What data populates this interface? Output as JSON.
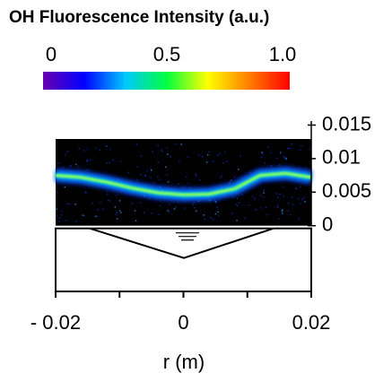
{
  "chart_data": {
    "type": "flame-image",
    "title": "OH  Fluorescence Intensity (a.u.)",
    "colorbar": {
      "ticks": [
        0,
        0.5,
        {
          "value": 1,
          "label": "1.0"
        }
      ],
      "lim": [
        0,
        1
      ],
      "colors": [
        "#6a00b0",
        "#0000ff",
        "#00c8ff",
        "#00ff40",
        "#ffff00",
        "#ff8000",
        "#ff0000"
      ]
    },
    "xlabel": "r (m)",
    "xlim": [
      -0.02,
      0.02
    ],
    "xticks": [
      {
        "value": -0.02,
        "label": "- 0.02"
      },
      0,
      0.02
    ],
    "xminorticks": [
      -0.01,
      0.01
    ],
    "ylim": [
      -0.0098,
      0.0156
    ],
    "yticks": [
      0,
      0.005,
      0.01,
      0.015
    ],
    "x": [
      -0.02,
      -0.016,
      -0.012,
      -0.008,
      -0.004,
      0,
      0.004,
      0.008,
      0.012,
      0.016,
      0.02
    ],
    "values": [
      0.0075,
      0.0072,
      0.0065,
      0.0056,
      0.0049,
      0.0046,
      0.0047,
      0.0055,
      0.0075,
      0.0078,
      0.0072
    ]
  }
}
